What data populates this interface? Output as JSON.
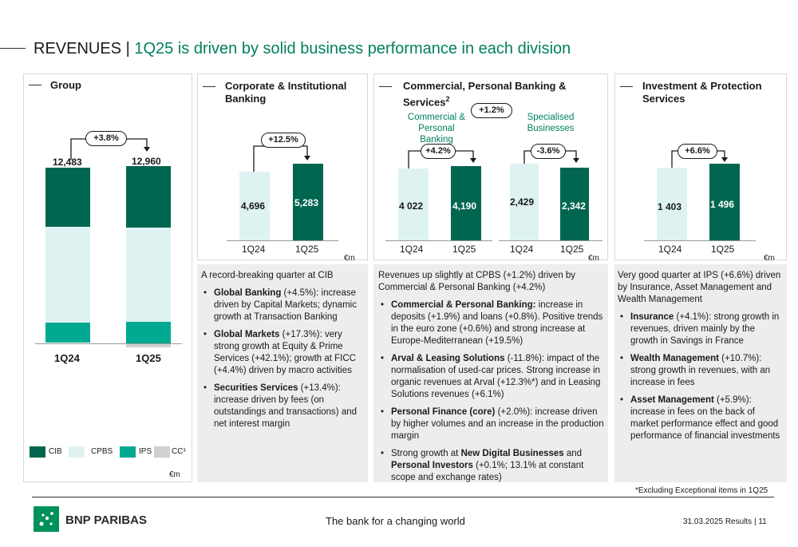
{
  "header": {
    "title_main": "REVENUES |",
    "title_sub": "1Q25 is driven by solid business performance in each division"
  },
  "group": {
    "title": "Group",
    "growth": "+3.8%",
    "periods": [
      "1Q24",
      "1Q25"
    ],
    "totals": [
      "12,483",
      "12,960"
    ],
    "legend": [
      "CIB",
      "CPBS",
      "IPS",
      "CC¹"
    ],
    "unit": "€m"
  },
  "cib": {
    "title": "Corporate & Institutional Banking",
    "growth": "+12.5%",
    "values": [
      "4,696",
      "5,283"
    ],
    "periods": [
      "1Q24",
      "1Q25"
    ],
    "unit": "€m",
    "intro": "A record-breaking quarter at CIB",
    "bullets": [
      {
        "b": "Global Banking",
        "t": " (+4.5%): increase driven by Capital Markets; dynamic growth at Transaction Banking"
      },
      {
        "b": "Global Markets",
        "t": " (+17.3%): very strong growth at Equity & Prime Services (+42.1%); growth at FICC (+4.4%) driven by macro activities"
      },
      {
        "b": "Securities Services",
        "t": " (+13.4%): increase driven by fees (on outstandings and transactions) and net interest margin"
      }
    ]
  },
  "cpbs": {
    "title": "Commercial, Personal Banking & Services",
    "title_sup": "2",
    "growth_total": "+1.2%",
    "sub1": {
      "label": "Commercial & Personal Banking",
      "growth": "+4.2%",
      "values": [
        "4 022",
        "4,190"
      ]
    },
    "sub2": {
      "label": "Specialised Businesses",
      "growth": "-3.6%",
      "values": [
        "2,429",
        "2,342"
      ]
    },
    "periods": [
      "1Q24",
      "1Q25",
      "1Q24",
      "1Q25"
    ],
    "unit": "€m",
    "intro": "Revenues up slightly at CPBS (+1.2%) driven by Commercial & Personal Banking (+4.2%)",
    "bullets": [
      {
        "pre": "",
        "b": "Commercial & Personal Banking:",
        "t": " increase in deposits (+1.9%) and loans (+0.8%). Positive trends in the euro zone (+0.6%) and strong increase at Europe-Mediterranean (+19.5%)"
      },
      {
        "pre": "",
        "b": "Arval & Leasing Solutions",
        "t": " (-11.8%): impact of the normalisation of used-car prices. Strong increase in organic revenues at Arval (+12.3%*) and in Leasing Solutions revenues (+6.1%)"
      },
      {
        "pre": "",
        "b": "Personal Finance (core)",
        "t": " (+2.0%): increase driven by higher volumes and an increase in the production margin"
      },
      {
        "pre": "Strong growth at ",
        "b": "New Digital Businesses",
        "mid": " and ",
        "b2": "Personal Investors",
        "t": " (+0.1%; 13.1% at constant scope and exchange rates)"
      }
    ]
  },
  "ips": {
    "title": "Investment & Protection Services",
    "growth": "+6.6%",
    "values": [
      "1 403",
      "1 496"
    ],
    "periods": [
      "1Q24",
      "1Q25"
    ],
    "unit": "€m",
    "intro": "Very good quarter at IPS (+6.6%) driven by Insurance, Asset Management and Wealth Management",
    "bullets": [
      {
        "b": "Insurance",
        "t": " (+4.1%): strong growth in revenues, driven mainly by the growth in Savings in France"
      },
      {
        "b": "Wealth Management",
        "t": " (+10.7%): strong growth in revenues, with an increase in fees"
      },
      {
        "b": "Asset Management",
        "t": " (+5.9%): increase in fees on the back of market performance effect and good performance of financial investments"
      }
    ]
  },
  "footnote": "*Excluding Exceptional items in 1Q25",
  "footer": {
    "brand": "BNP PARIBAS",
    "tagline": "The bank for a changing world",
    "page": "31.03.2025 Results | 11"
  },
  "colors": {
    "cib": "#00664f",
    "cpbs": "#def3f1",
    "ips": "#00a98f",
    "cc": "#d0d0d0",
    "accent": "#00805f"
  }
}
